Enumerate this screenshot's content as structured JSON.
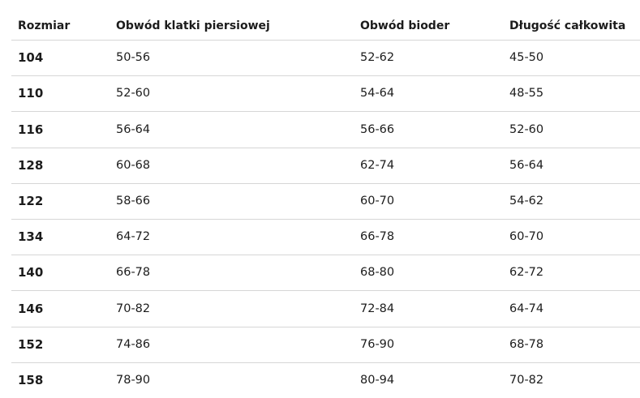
{
  "table": {
    "header": [
      "Rozmiar",
      "Obwód klatki piersiowej",
      "Obwód bioder",
      "Długość całkowita"
    ],
    "rows": [
      [
        "104",
        "50-56",
        "52-62",
        "45-50"
      ],
      [
        "110",
        "52-60",
        "54-64",
        "48-55"
      ],
      [
        "116",
        "56-64",
        "56-66",
        "52-60"
      ],
      [
        "128",
        "60-68",
        "62-74",
        "56-64"
      ],
      [
        "122",
        "58-66",
        "60-70",
        "54-62"
      ],
      [
        "134",
        "64-72",
        "66-78",
        "60-70"
      ],
      [
        "140",
        "66-78",
        "68-80",
        "62-72"
      ],
      [
        "146",
        "70-82",
        "72-84",
        "64-74"
      ],
      [
        "152",
        "74-86",
        "76-90",
        "68-78"
      ],
      [
        "158",
        "78-90",
        "80-94",
        "70-82"
      ]
    ]
  }
}
